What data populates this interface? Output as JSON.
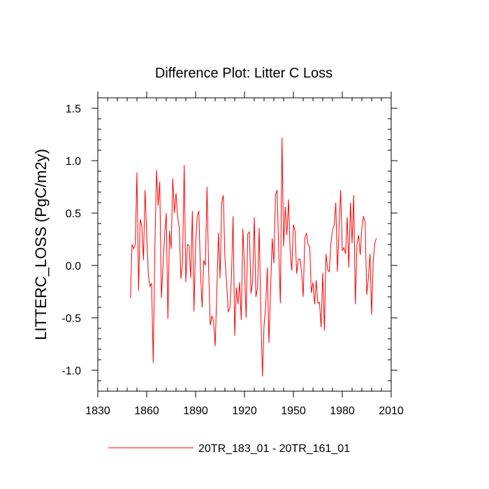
{
  "chart_data": {
    "type": "line",
    "title": "Difference Plot: Litter C Loss",
    "xlabel": "",
    "ylabel": "LITTERC_LOSS  (PgC/m2y)",
    "xlim": [
      1830,
      2010
    ],
    "ylim": [
      -1.2,
      1.6
    ],
    "x_ticks": [
      1830,
      1860,
      1890,
      1920,
      1950,
      1980,
      2010
    ],
    "x_tick_labels": [
      "1830",
      "1860",
      "1890",
      "1920",
      "1950",
      "1980",
      "2010"
    ],
    "y_ticks": [
      -1.0,
      -0.5,
      0.0,
      0.5,
      1.0,
      1.5
    ],
    "y_tick_labels": [
      "-1.0",
      "-0.5",
      "0.0",
      "0.5",
      "1.0",
      "1.5"
    ],
    "x_minor_step": 6,
    "y_minor_step": 0.1,
    "grid": false,
    "legend_position": "bottom-center",
    "series": [
      {
        "name": "20TR_183_01 - 20TR_161_01",
        "color": "#ff0000",
        "x_start": 1850,
        "x_step": 1,
        "values": [
          -0.31,
          0.2,
          0.16,
          0.2,
          0.89,
          -0.24,
          0.44,
          0.38,
          0.05,
          0.72,
          0.3,
          -0.09,
          -0.2,
          -0.17,
          -0.93,
          0.15,
          0.91,
          0.57,
          0.8,
          -0.31,
          0.0,
          0.29,
          0.5,
          -0.51,
          0.33,
          0.16,
          0.83,
          0.5,
          0.69,
          0.46,
          0.36,
          -0.13,
          0.04,
          0.96,
          -0.16,
          0.2,
          0.19,
          -0.12,
          0.52,
          -0.44,
          0.2,
          0.47,
          0.52,
          -0.07,
          -0.4,
          0.05,
          0.0,
          0.75,
          -0.04,
          -0.57,
          -0.48,
          -0.53,
          -0.77,
          -0.26,
          0.31,
          -0.12,
          0.6,
          0.67,
          0.07,
          -0.16,
          -0.44,
          -0.41,
          -0.11,
          0.47,
          -0.67,
          -0.21,
          -0.37,
          -0.16,
          -0.52,
          0.35,
          -0.03,
          -0.5,
          0.3,
          0.32,
          -0.27,
          -0.15,
          0.46,
          -0.3,
          -0.21,
          0.36,
          -0.43,
          -1.06,
          -0.57,
          -0.39,
          -0.02,
          -0.74,
          -0.23,
          0.26,
          0.02,
          0.67,
          0.72,
          0.13,
          -0.36,
          1.22,
          0.18,
          0.56,
          0.29,
          0.63,
          0.14,
          -0.05,
          0.39,
          0.33,
          -0.08,
          0.06,
          0.06,
          -0.06,
          -0.3,
          0.26,
          0.31,
          0.2,
          0.18,
          -0.26,
          -0.16,
          -0.37,
          -0.14,
          -0.36,
          -0.35,
          -0.59,
          -0.07,
          -0.62,
          0.11,
          -0.04,
          -0.06,
          0.21,
          0.34,
          0.38,
          0.6,
          -0.06,
          0.35,
          0.72,
          0.14,
          0.17,
          0.11,
          0.46,
          -0.02,
          0.6,
          0.21,
          0.67,
          -0.37,
          0.2,
          0.29,
          0.1,
          0.36,
          0.47,
          0.41,
          -0.28,
          -0.12,
          0.11,
          -0.47,
          0.05,
          0.22,
          0.26
        ]
      }
    ]
  }
}
